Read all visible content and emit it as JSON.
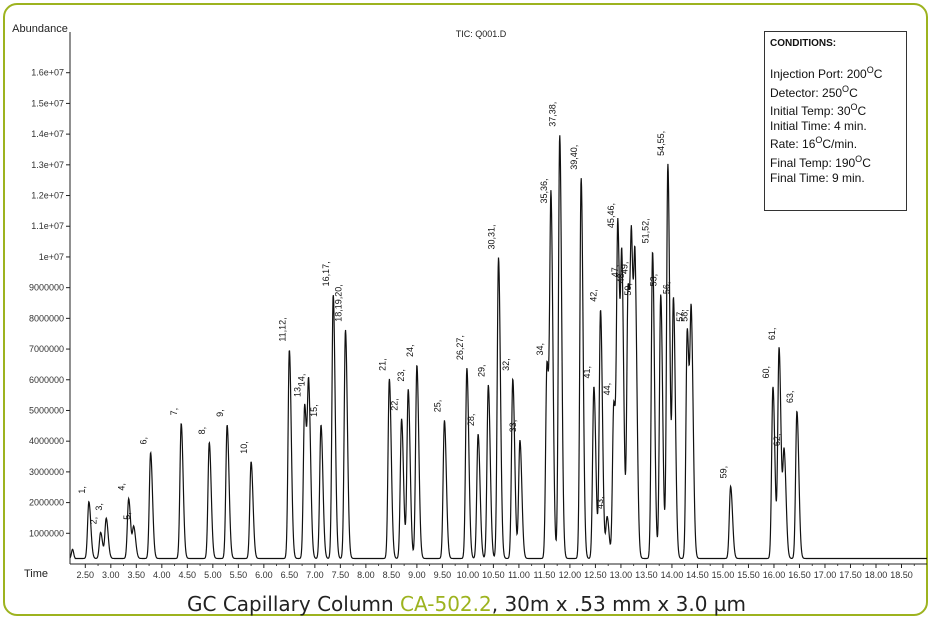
{
  "chart_data": {
    "type": "line",
    "title": "TIC: Q001.D",
    "ylabel": "Abundance",
    "xlabel": "Time",
    "xlim": [
      2.2,
      19.0
    ],
    "ylim": [
      0,
      17000000
    ],
    "y_ticks": [
      {
        "v": 1000000,
        "t": "1000000"
      },
      {
        "v": 2000000,
        "t": "2000000"
      },
      {
        "v": 3000000,
        "t": "3000000"
      },
      {
        "v": 4000000,
        "t": "4000000"
      },
      {
        "v": 5000000,
        "t": "5000000"
      },
      {
        "v": 6000000,
        "t": "6000000"
      },
      {
        "v": 7000000,
        "t": "7000000"
      },
      {
        "v": 8000000,
        "t": "8000000"
      },
      {
        "v": 9000000,
        "t": "9000000"
      },
      {
        "v": 10000000,
        "t": "1e+07"
      },
      {
        "v": 11000000,
        "t": "1.1e+07"
      },
      {
        "v": 12000000,
        "t": "1.2e+07"
      },
      {
        "v": 13000000,
        "t": "1.3e+07"
      },
      {
        "v": 14000000,
        "t": "1.4e+07"
      },
      {
        "v": 15000000,
        "t": "1.5e+07"
      },
      {
        "v": 16000000,
        "t": "1.6e+07"
      }
    ],
    "x_ticks": [
      "2.50",
      "3.00",
      "3.50",
      "4.00",
      "4.50",
      "5.00",
      "5.50",
      "6.00",
      "6.50",
      "7.00",
      "7.50",
      "8.00",
      "8.50",
      "9.00",
      "9.50",
      "10.00",
      "10.50",
      "11.00",
      "11.50",
      "12.00",
      "12.50",
      "13.00",
      "13.50",
      "14.00",
      "14.50",
      "15.00",
      "15.50",
      "16.00",
      "16.50",
      "17.00",
      "17.50",
      "18.00",
      "18.50"
    ],
    "baseline": 180000,
    "peaks": [
      {
        "label": "1,",
        "t": 2.57,
        "h": 1850000
      },
      {
        "label": "2,",
        "t": 2.8,
        "h": 850000
      },
      {
        "label": "3,",
        "t": 2.91,
        "h": 1300000
      },
      {
        "label": "4,",
        "t": 3.35,
        "h": 1950000
      },
      {
        "label": "5,",
        "t": 3.45,
        "h": 1000000
      },
      {
        "label": "6,",
        "t": 3.78,
        "h": 3450000
      },
      {
        "label": "7,",
        "t": 4.38,
        "h": 4400000
      },
      {
        "label": "8,",
        "t": 4.93,
        "h": 3780000
      },
      {
        "label": "9,",
        "t": 5.28,
        "h": 4350000
      },
      {
        "label": "10,",
        "t": 5.75,
        "h": 3150000
      },
      {
        "label": "11,12,",
        "t": 6.5,
        "h": 6800000
      },
      {
        "label": "13,",
        "t": 6.8,
        "h": 5000000
      },
      {
        "label": "14,",
        "t": 6.88,
        "h": 5350000
      },
      {
        "label": "15,",
        "t": 7.12,
        "h": 4350000
      },
      {
        "label": "16,17,",
        "t": 7.36,
        "h": 8600000
      },
      {
        "label": "18,19,20,",
        "t": 7.6,
        "h": 7450000
      },
      {
        "label": "21,",
        "t": 8.46,
        "h": 5850000
      },
      {
        "label": "22,",
        "t": 8.7,
        "h": 4550000
      },
      {
        "label": "23,",
        "t": 8.83,
        "h": 5500000
      },
      {
        "label": "24,",
        "t": 9.0,
        "h": 6300000
      },
      {
        "label": "25,",
        "t": 9.54,
        "h": 4500000
      },
      {
        "label": "26,27,",
        "t": 9.98,
        "h": 6200000
      },
      {
        "label": "28,",
        "t": 10.2,
        "h": 4050000
      },
      {
        "label": "29,",
        "t": 10.4,
        "h": 5650000
      },
      {
        "label": "30,31,",
        "t": 10.6,
        "h": 9800000
      },
      {
        "label": "32,",
        "t": 10.88,
        "h": 5850000
      },
      {
        "label": "33,",
        "t": 11.02,
        "h": 3850000
      },
      {
        "label": "34,",
        "t": 11.55,
        "h": 6350000
      },
      {
        "label": "35,36,",
        "t": 11.63,
        "h": 11300000
      },
      {
        "label": "37,38,",
        "t": 11.8,
        "h": 13800000
      },
      {
        "label": "39,40,",
        "t": 12.22,
        "h": 12400000
      },
      {
        "label": "41,",
        "t": 12.47,
        "h": 5600000
      },
      {
        "label": "42,",
        "t": 12.6,
        "h": 8100000
      },
      {
        "label": "43,",
        "t": 12.73,
        "h": 1350000
      },
      {
        "label": "44,",
        "t": 12.86,
        "h": 5050000
      },
      {
        "label": "45,46,",
        "t": 12.94,
        "h": 10500000
      },
      {
        "label": "47,",
        "t": 13.02,
        "h": 8900000
      },
      {
        "label": "48,",
        "t": 13.14,
        "h": 8700000
      },
      {
        "label": "49,",
        "t": 13.21,
        "h": 9000000
      },
      {
        "label": "50,",
        "t": 13.28,
        "h": 8300000
      },
      {
        "label": "51,52,",
        "t": 13.62,
        "h": 10000000
      },
      {
        "label": "53,",
        "t": 13.78,
        "h": 8600000
      },
      {
        "label": "54,55,",
        "t": 13.92,
        "h": 12850000
      },
      {
        "label": "56,",
        "t": 14.03,
        "h": 8350000
      },
      {
        "label": "57,",
        "t": 14.3,
        "h": 7450000
      },
      {
        "label": "58,",
        "t": 14.38,
        "h": 7450000
      },
      {
        "label": "59,",
        "t": 15.15,
        "h": 2350000
      },
      {
        "label": "60,",
        "t": 15.98,
        "h": 5600000
      },
      {
        "label": "61,",
        "t": 16.1,
        "h": 6850000
      },
      {
        "label": "62,",
        "t": 16.2,
        "h": 3400000
      },
      {
        "label": "63,",
        "t": 16.45,
        "h": 4800000
      }
    ]
  },
  "conditions": {
    "heading": "CONDITIONS:",
    "lines": [
      {
        "pre": "Injection Port: 200",
        "sup": "O",
        "post": "C"
      },
      {
        "pre": "Detector: 250",
        "sup": "O",
        "post": "C"
      },
      {
        "pre": "Initial Temp: 30",
        "sup": "O",
        "post": "C"
      },
      {
        "pre": "Initial Time: 4 min.",
        "sup": "",
        "post": ""
      },
      {
        "pre": "Rate: 16",
        "sup": "O",
        "post": "C/min."
      },
      {
        "pre": "Final Temp: 190",
        "sup": "O",
        "post": "C"
      },
      {
        "pre": "Final Time: 9 min.",
        "sup": "",
        "post": ""
      }
    ]
  },
  "footer": {
    "prefix": "GC Capillary Column ",
    "highlight": "CA-502.2",
    "suffix": ", 30m x .53 mm x 3.0 µm"
  },
  "colors": {
    "accent": "#9db31f",
    "trace": "#111111"
  }
}
